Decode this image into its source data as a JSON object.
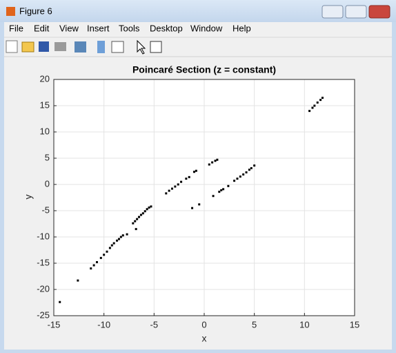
{
  "window": {
    "title": "Figure 6"
  },
  "menu": [
    "File",
    "Edit",
    "View",
    "Insert",
    "Tools",
    "Desktop",
    "Window",
    "Help"
  ],
  "chart_data": {
    "type": "scatter",
    "title": "Poincaré Section (z = constant)",
    "x_label": "x",
    "y_label": "y",
    "x": [
      -14.4,
      -12.6,
      -11.3,
      -11.0,
      -10.7,
      -10.3,
      -10.0,
      -9.7,
      -9.4,
      -9.2,
      -9.0,
      -8.7,
      -8.5,
      -8.3,
      -8.1,
      -7.7,
      -7.1,
      -6.9,
      -6.8,
      -6.7,
      -6.5,
      -6.3,
      -6.1,
      -5.9,
      -5.7,
      -5.5,
      -5.3,
      -3.8,
      -3.5,
      -3.2,
      -2.9,
      -2.6,
      -2.3,
      -1.8,
      -1.5,
      -1.2,
      -1.0,
      -0.8,
      -0.5,
      0.5,
      0.8,
      0.9,
      1.1,
      1.3,
      1.5,
      1.7,
      1.9,
      2.4,
      3.0,
      3.3,
      3.6,
      3.9,
      4.2,
      4.5,
      4.7,
      5.0,
      10.5,
      10.8,
      11.0,
      11.3,
      11.6,
      11.8
    ],
    "values": [
      -22.4,
      -18.3,
      -16.0,
      -15.4,
      -14.8,
      -14.0,
      -13.4,
      -12.8,
      -12.1,
      -11.6,
      -11.2,
      -10.7,
      -10.4,
      -10.0,
      -9.7,
      -9.5,
      -7.4,
      -7.0,
      -8.5,
      -6.6,
      -6.2,
      -5.8,
      -5.5,
      -5.1,
      -4.7,
      -4.4,
      -4.2,
      -1.7,
      -1.2,
      -0.8,
      -0.4,
      0.0,
      0.5,
      1.1,
      1.4,
      -4.5,
      2.4,
      2.6,
      -3.8,
      3.8,
      4.2,
      -2.2,
      4.5,
      4.7,
      -1.4,
      -1.1,
      -0.9,
      -0.3,
      0.7,
      1.1,
      1.5,
      1.9,
      2.3,
      2.8,
      3.1,
      3.6,
      14.0,
      14.6,
      15.0,
      15.6,
      16.1,
      16.5
    ],
    "color": "#000000",
    "xlim": [
      -15,
      15
    ],
    "xticks": [
      -15,
      -10,
      -5,
      0,
      5,
      10,
      15
    ],
    "ylim": [
      -25,
      20
    ],
    "yticks": [
      -25,
      -20,
      -15,
      -10,
      -5,
      0,
      5,
      10,
      15,
      20
    ],
    "grid": true
  }
}
